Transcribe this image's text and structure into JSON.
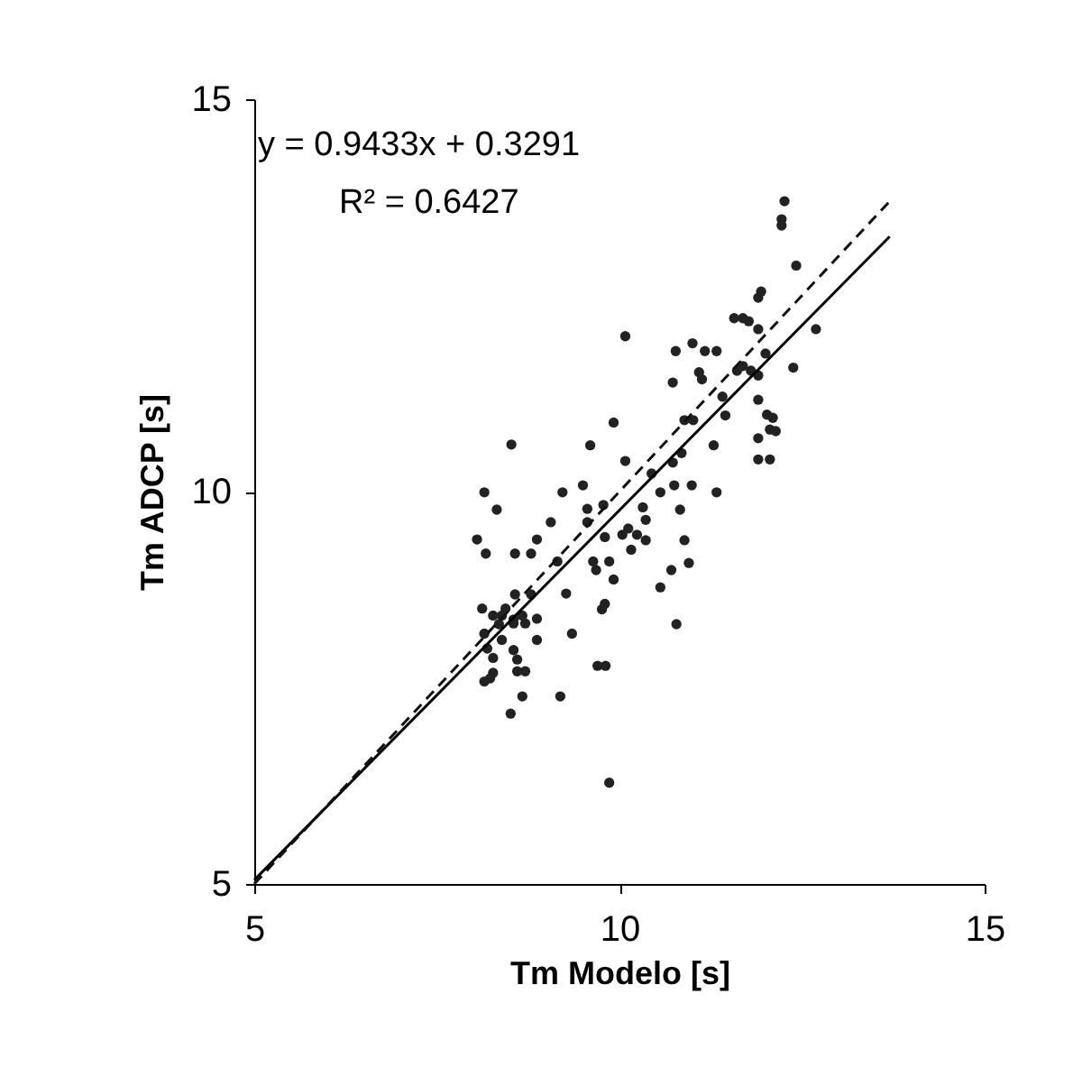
{
  "chart_data": {
    "type": "scatter",
    "xlabel": "Tm Modelo [s]",
    "ylabel": "Tm ADCP [s]",
    "xlim": [
      5,
      15
    ],
    "ylim": [
      5,
      15
    ],
    "xticks": [
      5,
      10,
      15
    ],
    "yticks": [
      5,
      10,
      15
    ],
    "grid": false,
    "marker": "circle",
    "annotations": [
      "y = 0.9433x + 0.3291",
      "R² = 0.6427"
    ],
    "series": [
      {
        "color": "#222222",
        "x": [
          12.26,
          12.22,
          12.22,
          12.42,
          11.94,
          11.9,
          10.08,
          11.57,
          11.69,
          11.77,
          11.9,
          12.69,
          10.77,
          11.0,
          11.17,
          11.33,
          11.09,
          11.13,
          10.73,
          11.61,
          11.69,
          11.8,
          11.9,
          12.0,
          12.38,
          11.41,
          11.9,
          12.02,
          12.1,
          12.06,
          12.14,
          11.9,
          11.9,
          12.06,
          10.89,
          11.01,
          11.45,
          11.29,
          10.85,
          10.73,
          10.44,
          10.08,
          9.92,
          8.52,
          9.6,
          9.5,
          9.22,
          8.15,
          8.32,
          9.56,
          9.78,
          9.56,
          9.8,
          10.04,
          10.12,
          10.24,
          10.32,
          10.36,
          10.16,
          10.36,
          10.56,
          10.75,
          10.99,
          10.83,
          10.89,
          11.33,
          10.95,
          10.71,
          10.56,
          10.78,
          8.05,
          8.17,
          8.57,
          8.79,
          8.87,
          9.06,
          9.15,
          9.64,
          9.86,
          9.68,
          9.92,
          9.27,
          9.8,
          9.76,
          8.57,
          8.79,
          8.12,
          8.44,
          8.27,
          8.39,
          8.55,
          8.67,
          8.87,
          8.35,
          8.55,
          8.71,
          9.35,
          8.15,
          8.39,
          8.87,
          8.19,
          8.55,
          8.27,
          8.6,
          8.27,
          8.6,
          8.71,
          8.15,
          8.23,
          8.67,
          9.19,
          8.51,
          9.7,
          9.81,
          9.86
        ],
        "values": [
          13.7,
          13.47,
          13.39,
          12.88,
          12.55,
          12.47,
          11.98,
          12.21,
          12.21,
          12.17,
          12.07,
          12.07,
          11.79,
          11.89,
          11.79,
          11.79,
          11.52,
          11.43,
          11.39,
          11.54,
          11.6,
          11.54,
          11.48,
          11.76,
          11.58,
          11.21,
          11.17,
          10.98,
          10.94,
          10.79,
          10.77,
          10.68,
          10.41,
          10.41,
          10.91,
          10.91,
          10.97,
          10.59,
          10.49,
          10.37,
          10.23,
          10.39,
          10.88,
          10.6,
          10.59,
          10.08,
          9.99,
          9.99,
          9.77,
          9.78,
          9.83,
          9.61,
          9.42,
          9.45,
          9.53,
          9.45,
          9.8,
          9.64,
          9.26,
          9.38,
          9.99,
          10.08,
          10.08,
          9.77,
          9.38,
          9.99,
          9.09,
          9.0,
          8.78,
          8.31,
          9.39,
          9.21,
          9.21,
          9.21,
          9.39,
          9.61,
          9.11,
          9.11,
          9.11,
          9.0,
          8.88,
          8.7,
          8.57,
          8.5,
          8.69,
          8.69,
          8.51,
          8.51,
          8.42,
          8.42,
          8.37,
          8.42,
          8.38,
          8.31,
          8.32,
          8.32,
          8.19,
          8.19,
          8.11,
          8.11,
          8.0,
          7.98,
          7.88,
          7.86,
          7.69,
          7.71,
          7.71,
          7.58,
          7.62,
          7.39,
          7.39,
          7.17,
          7.78,
          7.78,
          6.29
        ]
      },
      {
        "type": "line",
        "color": "#000000",
        "line_style": "solid",
        "marker": "none",
        "x": [
          5,
          13.7
        ],
        "values": [
          5.05,
          13.25
        ]
      },
      {
        "type": "line",
        "color": "#111111",
        "line_style": "dashed",
        "marker": "none",
        "x": [
          5,
          13.7
        ],
        "values": [
          5,
          13.7
        ]
      }
    ]
  }
}
